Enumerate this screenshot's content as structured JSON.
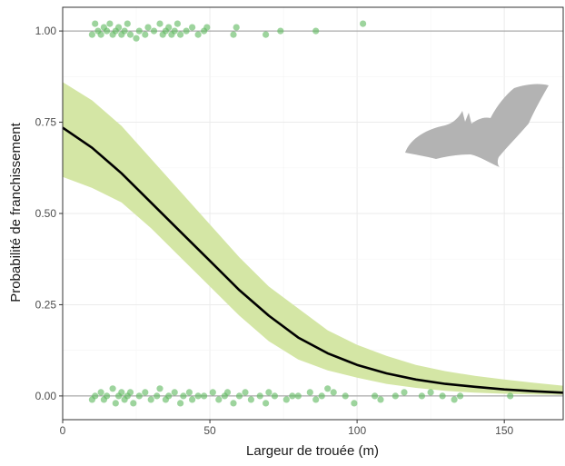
{
  "chart_data": {
    "type": "scatter",
    "title": "",
    "xlabel": "Largeur de trouée (m)",
    "ylabel": "Probabilité de franchissement",
    "xlim": [
      0,
      170
    ],
    "ylim": [
      -0.065,
      1.065
    ],
    "x_ticks": [
      {
        "value": 0,
        "label": "0"
      },
      {
        "value": 50,
        "label": "50"
      },
      {
        "value": 100,
        "label": "100"
      },
      {
        "value": 150,
        "label": "150"
      }
    ],
    "y_ticks": [
      {
        "value": 0,
        "label": "0.00"
      },
      {
        "value": 0.25,
        "label": "0.25"
      },
      {
        "value": 0.5,
        "label": "0.50"
      },
      {
        "value": 0.75,
        "label": "0.75"
      },
      {
        "value": 1,
        "label": "1.00"
      }
    ],
    "grid": true,
    "colors": {
      "points": "#5cb85c",
      "ribbon": "#d4e6a5",
      "curve": "#000000",
      "icon": "#b3b3b3",
      "reference_line": "#999999"
    },
    "icon": "bat-silhouette-icon",
    "reference_lines_y": [
      0,
      1
    ],
    "fit": {
      "type": "logistic",
      "x": [
        0,
        10,
        20,
        30,
        40,
        50,
        60,
        70,
        80,
        90,
        100,
        110,
        120,
        130,
        140,
        150,
        160,
        170
      ],
      "y": [
        0.735,
        0.68,
        0.61,
        0.53,
        0.45,
        0.37,
        0.29,
        0.22,
        0.16,
        0.117,
        0.085,
        0.062,
        0.045,
        0.033,
        0.025,
        0.018,
        0.013,
        0.009
      ],
      "ci_lower": [
        0.6,
        0.57,
        0.53,
        0.46,
        0.38,
        0.3,
        0.22,
        0.15,
        0.1,
        0.07,
        0.05,
        0.033,
        0.022,
        0.014,
        0.009,
        0.006,
        0.004,
        0.003
      ],
      "ci_upper": [
        0.86,
        0.81,
        0.74,
        0.65,
        0.56,
        0.47,
        0.38,
        0.3,
        0.24,
        0.18,
        0.14,
        0.11,
        0.085,
        0.068,
        0.055,
        0.045,
        0.036,
        0.028
      ]
    },
    "series": [
      {
        "outcome": 1,
        "x": [
          10,
          11,
          12,
          13,
          14,
          15,
          16,
          17,
          18,
          19,
          20,
          21,
          22,
          23,
          25,
          26,
          28,
          29,
          31,
          33,
          34,
          35,
          36,
          37,
          38,
          39,
          40,
          42,
          44,
          46,
          48,
          49,
          58,
          59,
          69,
          74,
          86,
          102
        ],
        "y": [
          0.99,
          1.02,
          1.0,
          0.99,
          1.01,
          1.0,
          1.02,
          0.99,
          1.0,
          1.01,
          0.99,
          1.0,
          1.02,
          0.99,
          0.98,
          1.0,
          0.99,
          1.01,
          1.0,
          1.02,
          0.99,
          1.0,
          1.01,
          0.99,
          1.0,
          1.02,
          0.99,
          1.0,
          1.01,
          0.99,
          1.0,
          1.01,
          0.99,
          1.01,
          0.99,
          1.0,
          1.0,
          1.02
        ]
      },
      {
        "outcome": 0,
        "x": [
          10,
          11,
          13,
          14,
          15,
          17,
          18,
          19,
          20,
          21,
          22,
          23,
          24,
          26,
          28,
          30,
          32,
          33,
          35,
          36,
          38,
          40,
          41,
          43,
          44,
          46,
          48,
          51,
          53,
          55,
          56,
          58,
          60,
          62,
          64,
          67,
          69,
          70,
          72,
          76,
          78,
          80,
          84,
          86,
          88,
          90,
          92,
          96,
          99,
          106,
          108,
          113,
          116,
          122,
          125,
          129,
          133,
          135,
          152
        ],
        "y": [
          -0.01,
          0.0,
          0.01,
          -0.01,
          0.0,
          0.02,
          -0.02,
          0.0,
          0.01,
          -0.01,
          0.0,
          0.01,
          -0.02,
          0.0,
          0.01,
          -0.01,
          0.0,
          0.02,
          -0.01,
          0.0,
          0.01,
          -0.02,
          0.0,
          0.01,
          -0.01,
          0.0,
          0.0,
          0.01,
          -0.01,
          0.0,
          0.01,
          -0.02,
          0.0,
          0.01,
          -0.01,
          0.0,
          -0.02,
          0.01,
          0.0,
          -0.01,
          0.0,
          0.0,
          0.01,
          -0.01,
          0.0,
          0.02,
          0.01,
          0.0,
          -0.02,
          0.0,
          -0.01,
          0.0,
          0.01,
          0.0,
          0.01,
          0.0,
          -0.01,
          0.0,
          0.0
        ]
      }
    ]
  }
}
